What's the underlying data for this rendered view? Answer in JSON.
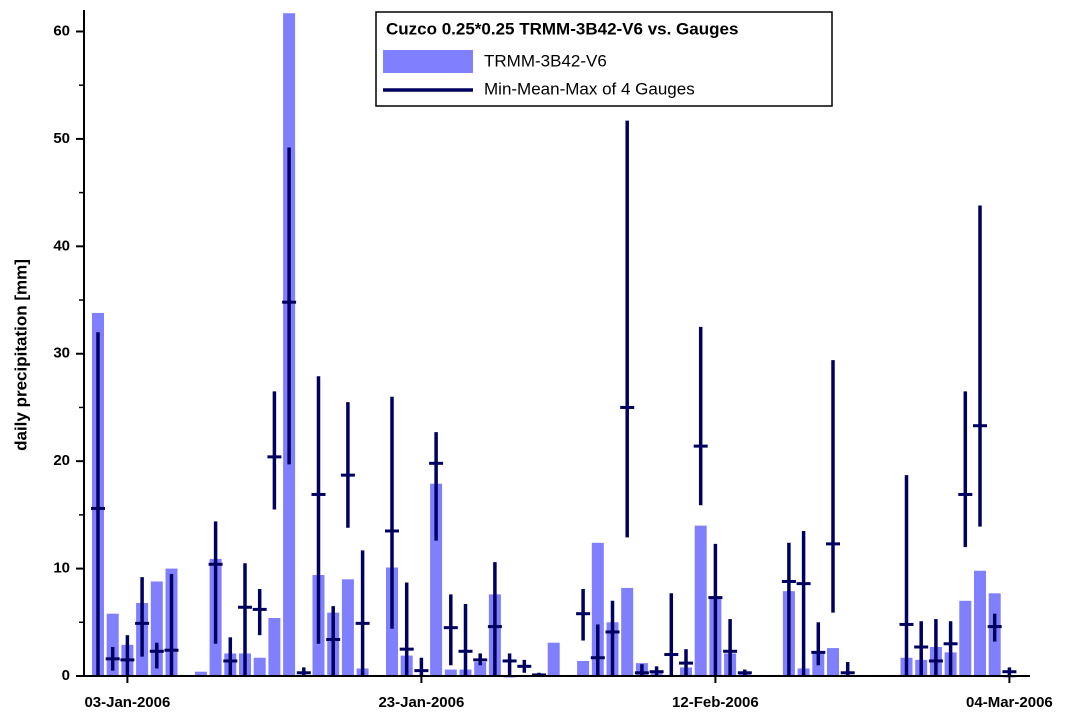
{
  "chart_data": {
    "type": "bar-range",
    "y_label": "daily precipitation [mm]",
    "legend_title": "Cuzco 0.25*0.25 TRMM-3B42-V6 vs. Gauges",
    "legend": "top-center",
    "categories": [
      null,
      null,
      "03-Jan-2006",
      null,
      null,
      null,
      null,
      null,
      null,
      null,
      null,
      null,
      null,
      null,
      null,
      null,
      null,
      null,
      null,
      null,
      null,
      null,
      "23-Jan-2006",
      null,
      null,
      null,
      null,
      null,
      null,
      null,
      null,
      null,
      null,
      null,
      null,
      null,
      null,
      null,
      null,
      null,
      null,
      null,
      "12-Feb-2006",
      null,
      null,
      null,
      null,
      null,
      null,
      null,
      null,
      null,
      null,
      null,
      null,
      null,
      null,
      null,
      null,
      null,
      null,
      null,
      "04-Mar-2006"
    ],
    "series": [
      {
        "name": "TRMM-3B42-V6",
        "color": "#8080ff",
        "values": [
          33.8,
          5.8,
          2.9,
          6.8,
          8.8,
          10,
          0.1,
          0.4,
          10.9,
          2.1,
          2.1,
          1.7,
          5.4,
          61.7,
          0.1,
          9.4,
          5.9,
          9,
          0.7,
          0.1,
          10.1,
          1.9,
          0.1,
          17.9,
          0.6,
          0.6,
          1.3,
          7.6,
          0,
          0.1,
          0.2,
          3.1,
          0.1,
          1.4,
          12.4,
          5,
          8.2,
          1.2,
          0.5,
          0.1,
          0.8,
          14,
          7.3,
          2.1,
          0.2,
          0.1,
          0.1,
          7.9,
          0.7,
          2.2,
          2.6,
          0.1,
          0.1,
          0.1,
          0.1,
          1.7,
          1.5,
          2.7,
          2.2,
          7,
          9.8,
          7.7,
          0
        ]
      },
      {
        "name": "Min-Mean-Max of 4 Gauges",
        "color": "#000060",
        "values": [
          15.6,
          1.6,
          1.5,
          4.9,
          2.3,
          2.4,
          null,
          null,
          10.4,
          1.4,
          6.4,
          6.2,
          20.4,
          34.8,
          0.3,
          16.9,
          3.4,
          18.7,
          4.9,
          null,
          13.5,
          2.5,
          0.5,
          19.8,
          4.5,
          2.3,
          1.5,
          4.6,
          1.4,
          0.9,
          0.1,
          null,
          null,
          5.8,
          1.7,
          4.1,
          25,
          0.3,
          0.4,
          2,
          1.2,
          21.4,
          7.3,
          2.3,
          0.3,
          null,
          null,
          8.8,
          8.6,
          2.2,
          12.3,
          0.3,
          null,
          null,
          null,
          4.8,
          2.7,
          1.4,
          3,
          16.9,
          23.3,
          4.6,
          0.4
        ],
        "low": [
          0,
          0.5,
          0,
          1.8,
          0.7,
          0,
          null,
          null,
          3,
          0,
          0,
          3.8,
          15.5,
          19.7,
          0,
          3,
          0,
          13.8,
          0,
          null,
          4.4,
          0,
          0,
          12.6,
          1,
          0,
          1,
          0,
          0,
          0.3,
          0,
          null,
          null,
          3.3,
          0,
          0,
          12.9,
          0,
          0,
          0,
          0,
          15.9,
          0,
          0,
          0,
          null,
          null,
          0,
          0,
          1,
          5.9,
          0,
          null,
          null,
          null,
          0,
          0,
          0,
          0,
          12,
          13.9,
          3.2,
          0
        ],
        "high": [
          32,
          2.7,
          3.8,
          9.2,
          3.1,
          9.5,
          null,
          null,
          14.4,
          3.6,
          10.5,
          8.1,
          26.5,
          49.2,
          0.8,
          27.9,
          6.5,
          25.5,
          11.7,
          null,
          26,
          8.7,
          1.7,
          22.7,
          7.6,
          6.7,
          2.1,
          10.6,
          2.1,
          1.5,
          0.3,
          null,
          null,
          8.1,
          4.8,
          7,
          51.7,
          1.1,
          0.9,
          7.7,
          2.5,
          32.5,
          12.3,
          5.3,
          0.6,
          null,
          null,
          12.4,
          13.5,
          5,
          29.4,
          1.3,
          null,
          null,
          null,
          18.7,
          5.1,
          5.3,
          5.1,
          26.5,
          43.8,
          5.8,
          0.8
        ]
      }
    ],
    "ylim": [
      0,
      62
    ],
    "yticks": [
      0,
      10,
      20,
      30,
      40,
      50,
      60
    ],
    "yminorticks": [
      5,
      15,
      25,
      35,
      45,
      55
    ]
  }
}
